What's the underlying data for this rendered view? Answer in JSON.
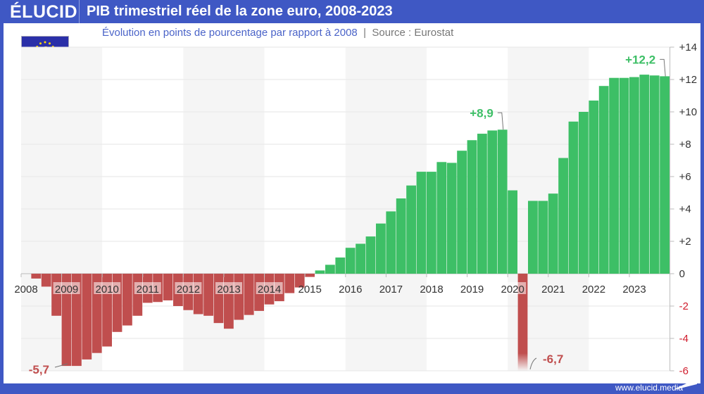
{
  "header": {
    "logo": "ÉLUCID",
    "title": "PIB trimestriel réel de la zone euro, 2008-2023"
  },
  "subtitle": {
    "text": "Évolution en points de pourcentage par rapport à 2008",
    "separator": "|",
    "source": "Source : Eurostat"
  },
  "flag_icon": "eu-euro-flag",
  "footer": {
    "url": "www.elucid.media"
  },
  "colors": {
    "frame": "#3f58c4",
    "positive": "#3dbf66",
    "negative": "#c04e4e",
    "negative_tick": "#d01c2c",
    "positive_label": "#3dbf66",
    "negative_label": "#c04e4e"
  },
  "chart_data": {
    "type": "bar",
    "title": "PIB trimestriel réel de la zone euro, 2008-2023",
    "frequency": "quarterly",
    "x_start": "2008-Q1",
    "year_labels": [
      "2008",
      "2009",
      "2010",
      "2011",
      "2012",
      "2013",
      "2014",
      "2015",
      "2016",
      "2017",
      "2018",
      "2019",
      "2020",
      "2021",
      "2022",
      "2023"
    ],
    "values": [
      0,
      -0.3,
      -0.8,
      -2.6,
      -5.7,
      -5.7,
      -5.3,
      -4.9,
      -4.5,
      -3.6,
      -3.2,
      -2.6,
      -1.8,
      -1.75,
      -1.65,
      -2.0,
      -2.25,
      -2.5,
      -2.6,
      -3.05,
      -3.4,
      -2.85,
      -2.55,
      -2.3,
      -1.9,
      -1.7,
      -1.2,
      -0.85,
      -0.2,
      0.2,
      0.55,
      1.0,
      1.6,
      1.85,
      2.3,
      3.1,
      3.85,
      4.65,
      5.45,
      6.3,
      6.3,
      6.9,
      6.85,
      7.6,
      8.25,
      8.65,
      8.85,
      8.9,
      5.15,
      -6.7,
      4.5,
      4.5,
      4.95,
      7.15,
      9.4,
      10.0,
      10.7,
      11.6,
      12.1,
      12.1,
      12.15,
      12.3,
      12.25,
      12.2
    ],
    "ylim": [
      -6,
      14
    ],
    "yticks": [
      "+14",
      "+12",
      "+10",
      "+8",
      "+6",
      "+4",
      "+2",
      "0",
      "-2",
      "-4",
      "-6"
    ],
    "ytick_values": [
      14,
      12,
      10,
      8,
      6,
      4,
      2,
      0,
      -2,
      -4,
      -6
    ],
    "y_axis_side": "right",
    "grid": true,
    "annotations": [
      {
        "text": "-5,7",
        "quarter": "2009-Q2",
        "value": -5.7
      },
      {
        "text": "+8,9",
        "quarter": "2019-Q4",
        "value": 8.9
      },
      {
        "text": "-6,7",
        "quarter": "2020-Q2",
        "value": -6.7
      },
      {
        "text": "+12,2",
        "quarter": "2023-Q4",
        "value": 12.2
      }
    ]
  }
}
